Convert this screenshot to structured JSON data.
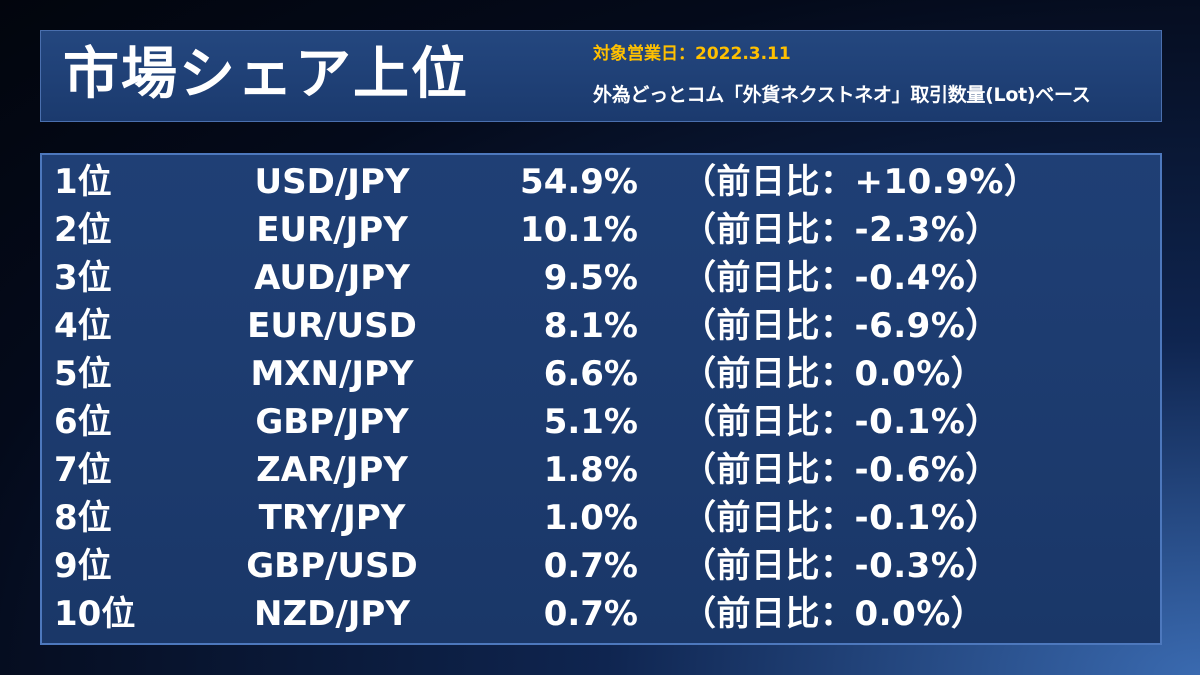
{
  "header": {
    "title": "市場シェア上位",
    "date_label": "対象営業日：2022.3.11",
    "basis": "外為どっとコム「外貨ネクストネオ」取引数量(Lot)ベース"
  },
  "rows": [
    {
      "rank": "1位",
      "pair": "USD/JPY",
      "share": "54.9%",
      "change": "（前日比：+10.9%）"
    },
    {
      "rank": "2位",
      "pair": "EUR/JPY",
      "share": "10.1%",
      "change": "（前日比：-2.3%）"
    },
    {
      "rank": "3位",
      "pair": "AUD/JPY",
      "share": "9.5%",
      "change": "（前日比：-0.4%）"
    },
    {
      "rank": "4位",
      "pair": "EUR/USD",
      "share": "8.1%",
      "change": "（前日比：-6.9%）"
    },
    {
      "rank": "5位",
      "pair": "MXN/JPY",
      "share": "6.6%",
      "change": "（前日比：0.0%）"
    },
    {
      "rank": "6位",
      "pair": "GBP/JPY",
      "share": "5.1%",
      "change": "（前日比：-0.1%）"
    },
    {
      "rank": "7位",
      "pair": "ZAR/JPY",
      "share": "1.8%",
      "change": "（前日比：-0.6%）"
    },
    {
      "rank": "8位",
      "pair": "TRY/JPY",
      "share": "1.0%",
      "change": "（前日比：-0.1%）"
    },
    {
      "rank": "9位",
      "pair": "GBP/USD",
      "share": "0.7%",
      "change": "（前日比：-0.3%）"
    },
    {
      "rank": "10位",
      "pair": "NZD/JPY",
      "share": "0.7%",
      "change": "（前日比：0.0%）"
    }
  ],
  "colors": {
    "accent": "#ffc000",
    "text": "#ffffff",
    "panel": "#1d3c70",
    "border": "#4d78bd"
  }
}
